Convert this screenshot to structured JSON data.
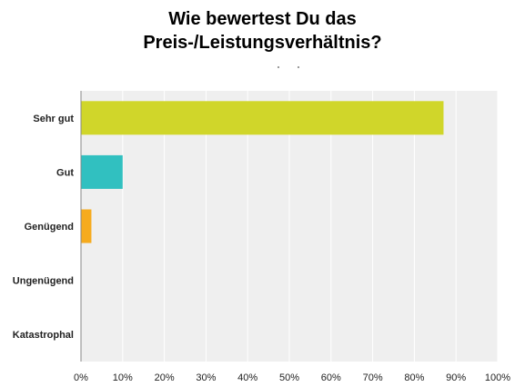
{
  "title": {
    "line1": "Wie bewertest Du das",
    "line2": "Preis-/Leistungsverhältnis?"
  },
  "chart_data": {
    "type": "bar",
    "orientation": "horizontal",
    "title": "Wie bewertest Du das Preis-/Leistungsverhältnis?",
    "categories": [
      "Sehr gut",
      "Gut",
      "Genügend",
      "Ungenügend",
      "Katastrophal"
    ],
    "values": [
      87,
      10,
      2.5,
      0,
      0
    ],
    "colors": [
      "#d0d62a",
      "#31c0c0",
      "#f6ab1e",
      "#cccccc",
      "#cccccc"
    ],
    "xlim": [
      0,
      100
    ],
    "x_ticks": [
      "0%",
      "10%",
      "20%",
      "30%",
      "40%",
      "50%",
      "60%",
      "70%",
      "80%",
      "90%",
      "100%"
    ],
    "grid": true,
    "background": "#efefef",
    "xlabel": "",
    "ylabel": ""
  }
}
